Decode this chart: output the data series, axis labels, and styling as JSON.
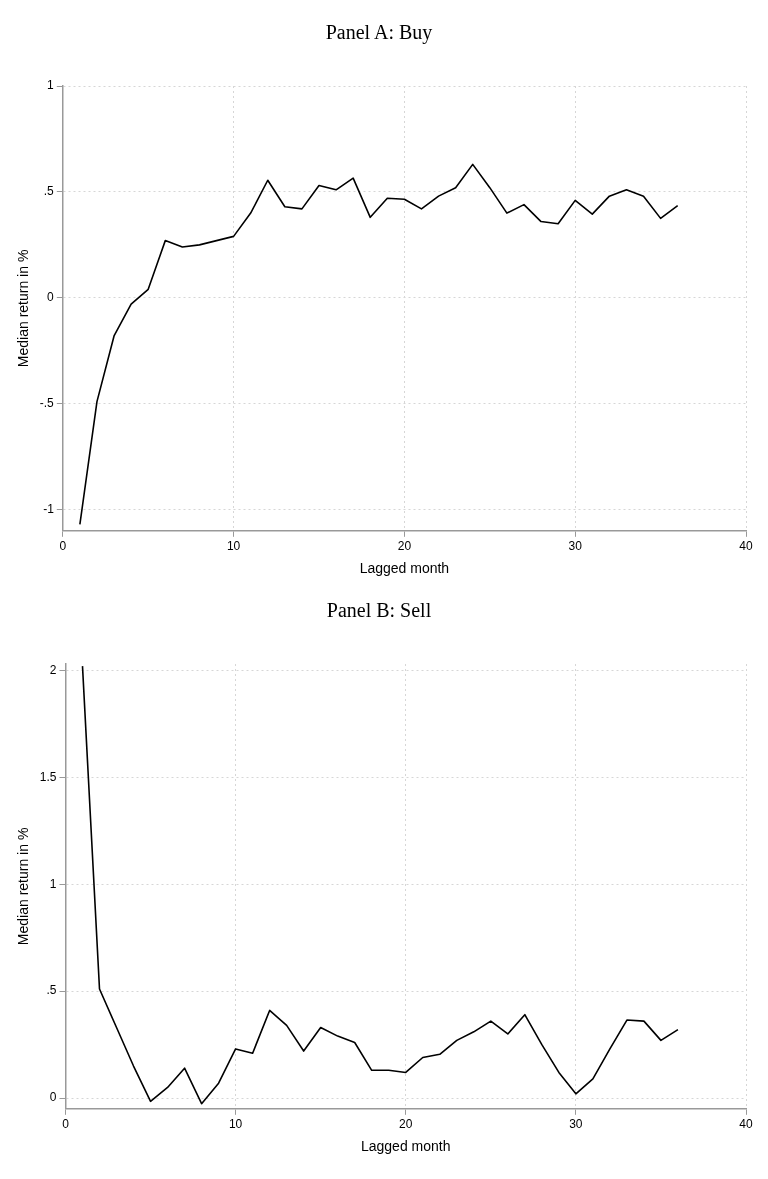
{
  "chart_data": [
    {
      "type": "line",
      "title": "Panel A: Buy",
      "xlabel": "Lagged month",
      "ylabel": "Median return in %",
      "x": [
        1,
        2,
        3,
        4,
        5,
        6,
        7,
        8,
        9,
        10,
        11,
        12,
        13,
        14,
        15,
        16,
        17,
        18,
        19,
        20,
        21,
        22,
        23,
        24,
        25,
        26,
        27,
        28,
        29,
        30,
        31,
        32,
        33,
        34,
        35,
        36
      ],
      "series": [
        {
          "color": "#000000",
          "values": [
            -1.07,
            -0.49,
            -0.18,
            -0.03,
            0.04,
            0.27,
            0.24,
            0.25,
            0.27,
            0.29,
            0.4,
            0.555,
            0.43,
            0.42,
            0.53,
            0.51,
            0.565,
            0.38,
            0.47,
            0.465,
            0.42,
            0.48,
            0.52,
            0.63,
            0.52,
            0.4,
            0.44,
            0.36,
            0.35,
            0.46,
            0.395,
            0.48,
            0.51,
            0.48,
            0.375,
            0.435
          ]
        }
      ],
      "xlim": [
        0,
        40
      ],
      "xticks": [
        0,
        10,
        20,
        30,
        40
      ],
      "ylim": [
        -1.1,
        1
      ],
      "yticks": [
        {
          "value": -1,
          "label": "-1"
        },
        {
          "value": -0.5,
          "label": "-.5"
        },
        0,
        {
          "value": 0.5,
          "label": ".5"
        },
        1
      ],
      "grid": true,
      "line_style": "solid",
      "marker": "none"
    },
    {
      "type": "line",
      "title": "Panel B: Sell",
      "xlabel": "Lagged month",
      "ylabel": "Median return in %",
      "x": [
        1,
        2,
        3,
        4,
        5,
        6,
        7,
        8,
        9,
        10,
        11,
        12,
        13,
        14,
        15,
        16,
        17,
        18,
        19,
        20,
        21,
        22,
        23,
        24,
        25,
        26,
        27,
        28,
        29,
        30,
        31,
        32,
        33,
        34,
        35,
        36
      ],
      "series": [
        {
          "color": "#000000",
          "values": [
            2.02,
            0.51,
            0.33,
            0.15,
            -0.015,
            0.05,
            0.14,
            -0.026,
            0.07,
            0.23,
            0.21,
            0.41,
            0.34,
            0.22,
            0.33,
            0.29,
            0.26,
            0.13,
            0.13,
            0.12,
            0.19,
            0.205,
            0.27,
            0.31,
            0.36,
            0.3,
            0.39,
            0.25,
            0.12,
            0.02,
            0.09,
            0.23,
            0.365,
            0.36,
            0.27,
            0.32
          ]
        }
      ],
      "xlim": [
        0,
        40
      ],
      "xticks": [
        0,
        10,
        20,
        30,
        40
      ],
      "ylim": [
        -0.05,
        2.03
      ],
      "yticks": [
        0,
        {
          "value": 0.5,
          "label": ".5"
        },
        1,
        {
          "value": 1.5,
          "label": "1.5"
        },
        2
      ],
      "grid": true,
      "line_style": "solid",
      "marker": "none"
    }
  ]
}
